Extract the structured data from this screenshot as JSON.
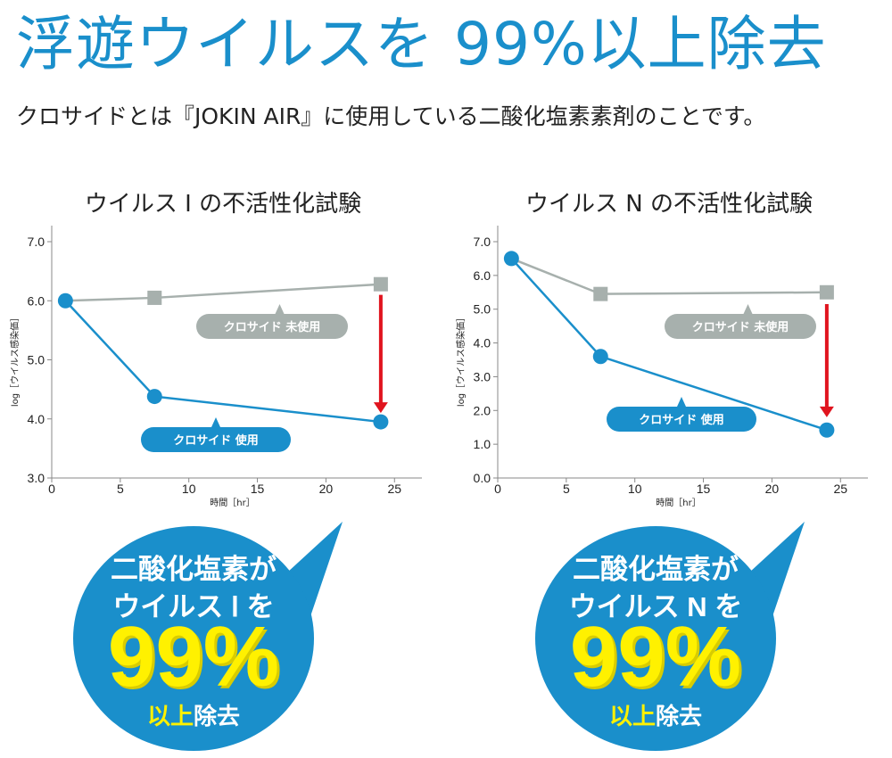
{
  "header": {
    "title": "浮遊ウイルスを 99%以上除去",
    "subtitle": "クロサイドとは『JOKIN AIR』に使用している二酸化塩素素剤のことです。"
  },
  "colors": {
    "accent": "#1a8fcb",
    "untreated": "#a7b0ad",
    "arrow": "#e0141e",
    "highlight": "#fff100"
  },
  "chart_data": [
    {
      "type": "line",
      "title": "ウイルス Ⅰ の不活性化試験",
      "xlabel": "時間［hr］",
      "ylabel": "log［ウイルス感染価］",
      "xlim": [
        0,
        27
      ],
      "ylim": [
        3.0,
        7.0
      ],
      "xticks": [
        0,
        5,
        10,
        15,
        20,
        25
      ],
      "xtick_labels": [
        "0",
        "5",
        "10",
        "15",
        "20",
        "25"
      ],
      "yticks": [
        3.0,
        4.0,
        5.0,
        6.0,
        7.0
      ],
      "ytick_labels": [
        "3.0",
        "4.0",
        "5.0",
        "6.0",
        "7.0"
      ],
      "series": [
        {
          "name": "クロサイド 未使用",
          "marker": "square",
          "x": [
            1,
            7.5,
            24
          ],
          "y": [
            6.0,
            6.05,
            6.28
          ]
        },
        {
          "name": "クロサイド 使用",
          "marker": "circle",
          "x": [
            1,
            7.5,
            24
          ],
          "y": [
            6.0,
            4.38,
            3.95
          ]
        }
      ],
      "arrow": {
        "x": 24,
        "from": 6.1,
        "to": 4.1
      }
    },
    {
      "type": "line",
      "title": "ウイルス N の不活性化試験",
      "xlabel": "時間［hr］",
      "ylabel": "log［ウイルス感染価］",
      "xlim": [
        0,
        27
      ],
      "ylim": [
        0.0,
        7.0
      ],
      "xticks": [
        0,
        5,
        10,
        15,
        20,
        25
      ],
      "xtick_labels": [
        "0",
        "5",
        "10",
        "15",
        "20",
        "25"
      ],
      "yticks": [
        0.0,
        1.0,
        2.0,
        3.0,
        4.0,
        5.0,
        6.0,
        7.0
      ],
      "ytick_labels": [
        "0.0",
        "1.0",
        "2.0",
        "3.0",
        "4.0",
        "5.0",
        "6.0",
        "7.0"
      ],
      "series": [
        {
          "name": "クロサイド 未使用",
          "marker": "square",
          "x": [
            1,
            7.5,
            24
          ],
          "y": [
            6.5,
            5.45,
            5.5
          ]
        },
        {
          "name": "クロサイド 使用",
          "marker": "circle",
          "x": [
            1,
            7.5,
            24
          ],
          "y": [
            6.5,
            3.6,
            1.42
          ]
        }
      ],
      "arrow": {
        "x": 24,
        "from": 5.15,
        "to": 1.8
      }
    }
  ],
  "bubbles": [
    {
      "line1": "二酸化塩素が",
      "line2": "ウイルス Ⅰ を",
      "percent": "99%",
      "suffix_a": "以上",
      "suffix_b": "除去"
    },
    {
      "line1": "二酸化塩素が",
      "line2": "ウイルス N を",
      "percent": "99%",
      "suffix_a": "以上",
      "suffix_b": "除去"
    }
  ]
}
